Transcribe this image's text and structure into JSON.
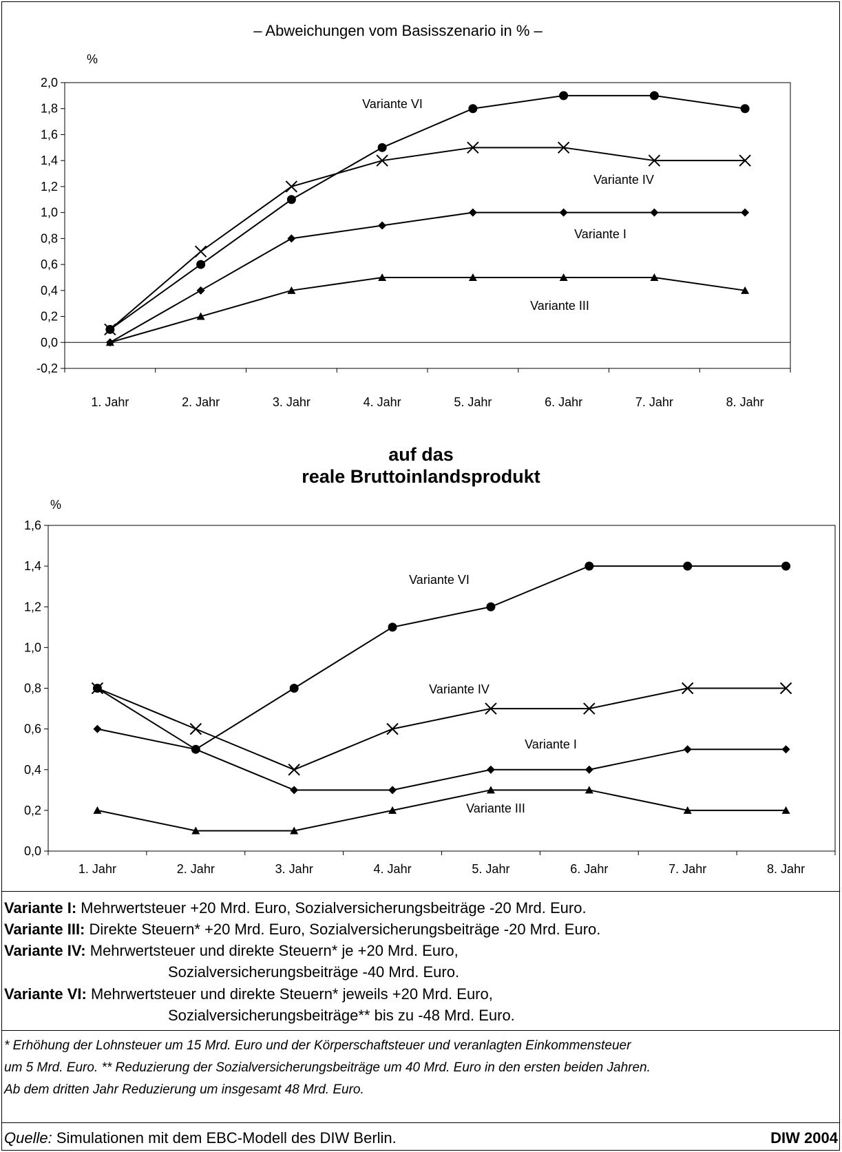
{
  "header": {
    "subtitle": "– Abweichungen vom Basisszenario in % –"
  },
  "middle_title": [
    "auf das",
    "reale Bruttoinlandsprodukt"
  ],
  "legend": [
    {
      "name": "Variante I:",
      "text": "Mehrwertsteuer +20 Mrd. Euro, Sozialversicherungsbeiträge -20 Mrd. Euro.",
      "cont": ""
    },
    {
      "name": "Variante III:",
      "text": "Direkte Steuern* +20 Mrd. Euro, Sozialversicherungsbeiträge -20 Mrd. Euro.",
      "cont": ""
    },
    {
      "name": "Variante IV:",
      "text": "Mehrwertsteuer und direkte Steuern* je +20 Mrd. Euro,",
      "cont": "Sozialversicherungsbeiträge -40 Mrd. Euro."
    },
    {
      "name": "Variante VI:",
      "text": "Mehrwertsteuer und direkte Steuern* jeweils +20 Mrd. Euro,",
      "cont": "Sozialversicherungsbeiträge** bis zu -48 Mrd. Euro."
    }
  ],
  "footnote": [
    "* Erhöhung der Lohnsteuer um 15 Mrd. Euro und der Körperschaftsteuer und veranlagten Einkommensteuer",
    "um 5 Mrd. Euro. ** Reduzierung der Sozialversicherungsbeiträge um 40 Mrd. Euro in den ersten beiden Jahren.",
    "Ab dem dritten Jahr Reduzierung um insgesamt 48 Mrd. Euro."
  ],
  "source": {
    "label": "Quelle:",
    "text": " Simulationen mit dem EBC-Modell des DIW Berlin."
  },
  "credit": "DIW 2004",
  "chart_data": [
    {
      "type": "line",
      "ylabel": "%",
      "ylim": [
        -0.2,
        2.0
      ],
      "yticks": [
        "-0,2",
        "0,0",
        "0,2",
        "0,4",
        "0,6",
        "0,8",
        "1,0",
        "1,2",
        "1,4",
        "1,6",
        "1,8",
        "2,0"
      ],
      "categories": [
        "1. Jahr",
        "2. Jahr",
        "3. Jahr",
        "4. Jahr",
        "5. Jahr",
        "6. Jahr",
        "7. Jahr",
        "8. Jahr"
      ],
      "grid": false,
      "series": [
        {
          "name": "Variante VI",
          "marker": "circle",
          "values": [
            0.1,
            0.6,
            1.1,
            1.5,
            1.8,
            1.9,
            1.9,
            1.8
          ]
        },
        {
          "name": "Variante IV",
          "marker": "cross",
          "values": [
            0.1,
            0.7,
            1.2,
            1.4,
            1.5,
            1.5,
            1.4,
            1.4
          ]
        },
        {
          "name": "Variante I",
          "marker": "diamond",
          "values": [
            0.0,
            0.4,
            0.8,
            0.9,
            1.0,
            1.0,
            1.0,
            1.0
          ]
        },
        {
          "name": "Variante III",
          "marker": "triangle",
          "values": [
            0.0,
            0.2,
            0.4,
            0.5,
            0.5,
            0.5,
            0.5,
            0.4
          ]
        }
      ]
    },
    {
      "type": "line",
      "ylabel": "%",
      "ylim": [
        0.0,
        1.6
      ],
      "yticks": [
        "0,0",
        "0,2",
        "0,4",
        "0,6",
        "0,8",
        "1,0",
        "1,2",
        "1,4",
        "1,6"
      ],
      "categories": [
        "1. Jahr",
        "2. Jahr",
        "3. Jahr",
        "4. Jahr",
        "5. Jahr",
        "6. Jahr",
        "7. Jahr",
        "8. Jahr"
      ],
      "grid": false,
      "series": [
        {
          "name": "Variante VI",
          "marker": "circle",
          "values": [
            0.8,
            0.5,
            0.8,
            1.1,
            1.2,
            1.4,
            1.4,
            1.4
          ]
        },
        {
          "name": "Variante IV",
          "marker": "cross",
          "values": [
            0.8,
            0.6,
            0.4,
            0.6,
            0.7,
            0.7,
            0.8,
            0.8
          ]
        },
        {
          "name": "Variante I",
          "marker": "diamond",
          "values": [
            0.6,
            0.5,
            0.3,
            0.3,
            0.4,
            0.4,
            0.5,
            0.5
          ]
        },
        {
          "name": "Variante III",
          "marker": "triangle",
          "values": [
            0.2,
            0.1,
            0.1,
            0.2,
            0.3,
            0.3,
            0.2,
            0.2
          ]
        }
      ]
    }
  ]
}
